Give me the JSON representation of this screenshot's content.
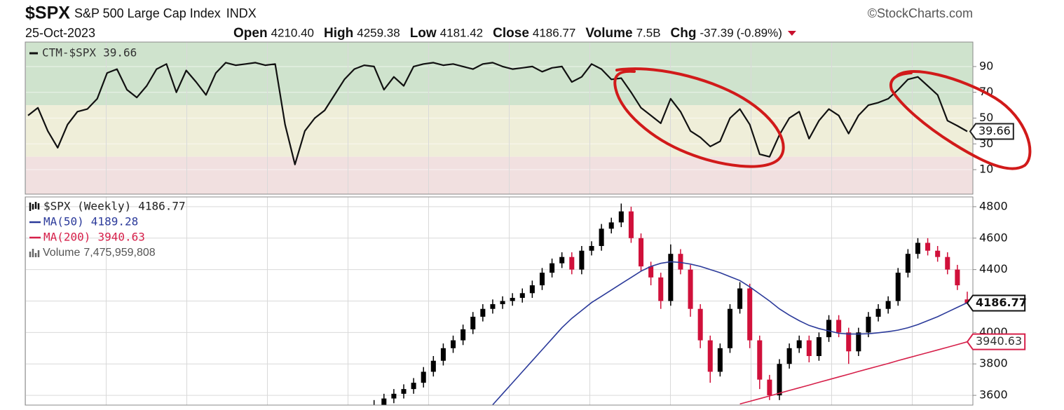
{
  "header": {
    "symbol": "$SPX",
    "name": "S&P 500 Large Cap Index",
    "exchange": "INDX",
    "credit": "©StockCharts.com",
    "date": "25-Oct-2023",
    "quote": [
      {
        "label": "Open",
        "value": {
          "value": 4210.4,
          "label": "4210.40"
        }
      },
      {
        "label": "High",
        "value": 4259.38
      },
      {
        "label": "Low",
        "value": 4181.42
      },
      {
        "label": "Close",
        "value": 4186.77
      },
      {
        "label": "Volume",
        "value": {
          "value": 7500000000,
          "label": "7.5B"
        }
      },
      {
        "label": "Chg",
        "value": -37.39,
        "percent": {
          "value": -0.89,
          "label": "(-0.89%)"
        }
      }
    ]
  },
  "chart_data": [
    {
      "type": "line",
      "series": [
        {
          "name": "CTM-$SPX",
          "color": "#111111",
          "values": [
            52,
            58,
            40,
            27,
            45,
            55,
            57,
            65,
            85,
            88,
            72,
            66,
            75,
            88,
            92,
            70,
            87,
            78,
            68,
            85,
            93,
            91,
            92,
            93,
            91,
            92,
            45,
            14,
            40,
            50,
            56,
            68,
            80,
            88,
            91,
            90,
            72,
            82,
            75,
            90,
            92,
            93,
            91,
            92,
            90,
            88,
            92,
            93,
            90,
            88,
            89,
            90,
            86,
            89,
            90,
            78,
            82,
            92,
            88,
            80,
            81,
            70,
            58,
            52,
            46,
            65,
            55,
            40,
            35,
            28,
            32,
            50,
            57,
            45,
            22,
            20,
            37,
            50,
            55,
            34,
            48,
            57,
            52,
            38,
            52,
            60,
            62,
            65,
            72,
            80,
            82,
            75,
            68,
            48,
            44,
            39.66
          ]
        }
      ],
      "ylim": [
        -9,
        109
      ],
      "yticks": [
        10,
        30,
        50,
        70,
        90
      ],
      "bands": [
        {
          "from": 60,
          "to": 109,
          "color": "#cfe3cd"
        },
        {
          "from": 20,
          "to": 60,
          "color": "#efeed9"
        },
        {
          "from": -9,
          "to": 20,
          "color": "#f1e0e0"
        }
      ],
      "grid": true
    },
    {
      "type": "candlestick",
      "series": [
        {
          "name": "$SPX (Weekly)",
          "up_color": "#000000",
          "down_color": "#d0103a",
          "open": [
            null,
            null,
            null,
            null,
            null,
            null,
            null,
            null,
            null,
            null,
            null,
            null,
            null,
            null,
            null,
            null,
            null,
            null,
            null,
            null,
            null,
            null,
            null,
            null,
            null,
            null,
            null,
            null,
            null,
            null,
            null,
            null,
            null,
            null,
            null,
            3500,
            3540,
            3580,
            3610,
            3640,
            3680,
            3750,
            3820,
            3900,
            3950,
            4020,
            4100,
            4150,
            4180,
            4200,
            4220,
            4250,
            4300,
            4380,
            4440,
            4480,
            4400,
            4520,
            4550,
            4660,
            4700,
            4770,
            4600,
            4420,
            4350,
            4200,
            4500,
            4400,
            4150,
            3950,
            3750,
            3900,
            4150,
            4280,
            3950,
            3700,
            3600,
            3800,
            3900,
            3950,
            3850,
            3970,
            4080,
            4000,
            3880,
            4000,
            4100,
            4150,
            4200,
            4380,
            4500,
            4570,
            4520,
            4480,
            4400,
            4210.4
          ],
          "high": [
            null,
            null,
            null,
            null,
            null,
            null,
            null,
            null,
            null,
            null,
            null,
            null,
            null,
            null,
            null,
            null,
            null,
            null,
            null,
            null,
            null,
            null,
            null,
            null,
            null,
            null,
            null,
            null,
            null,
            null,
            null,
            null,
            null,
            null,
            null,
            3570,
            3610,
            3640,
            3670,
            3710,
            3780,
            3850,
            3930,
            3980,
            4050,
            4130,
            4180,
            4210,
            4230,
            4250,
            4280,
            4330,
            4410,
            4470,
            4510,
            4510,
            4550,
            4580,
            4690,
            4730,
            4820,
            4800,
            4630,
            4450,
            4380,
            4560,
            4530,
            4430,
            4180,
            3980,
            3930,
            4180,
            4320,
            4310,
            3980,
            3730,
            3830,
            3930,
            3980,
            3980,
            4000,
            4110,
            4110,
            4030,
            4030,
            4130,
            4180,
            4230,
            4410,
            4530,
            4600,
            4600,
            4550,
            4510,
            4430,
            4259.38
          ],
          "low": [
            null,
            null,
            null,
            null,
            null,
            null,
            null,
            null,
            null,
            null,
            null,
            null,
            null,
            null,
            null,
            null,
            null,
            null,
            null,
            null,
            null,
            null,
            null,
            null,
            null,
            null,
            null,
            null,
            null,
            null,
            null,
            null,
            null,
            null,
            null,
            3470,
            3510,
            3550,
            3580,
            3610,
            3650,
            3720,
            3790,
            3870,
            3920,
            3990,
            4070,
            4120,
            4150,
            4170,
            4190,
            4220,
            4270,
            4350,
            4410,
            4370,
            4370,
            4490,
            4520,
            4630,
            4670,
            4570,
            4390,
            4300,
            4150,
            4170,
            4370,
            4100,
            3900,
            3680,
            3720,
            3870,
            4120,
            3900,
            3640,
            3570,
            3570,
            3770,
            3870,
            3810,
            3820,
            3940,
            3970,
            3800,
            3850,
            3970,
            4070,
            4120,
            4170,
            4350,
            4470,
            4490,
            4450,
            4370,
            4270,
            4181.42
          ],
          "close": [
            null,
            null,
            null,
            null,
            null,
            null,
            null,
            null,
            null,
            null,
            null,
            null,
            null,
            null,
            null,
            null,
            null,
            null,
            null,
            null,
            null,
            null,
            null,
            null,
            null,
            null,
            null,
            null,
            null,
            null,
            null,
            null,
            null,
            null,
            null,
            3540,
            3580,
            3610,
            3640,
            3680,
            3750,
            3820,
            3900,
            3950,
            4020,
            4100,
            4150,
            4180,
            4200,
            4220,
            4250,
            4300,
            4380,
            4440,
            4480,
            4400,
            4520,
            4550,
            4660,
            4700,
            4770,
            4600,
            4420,
            4350,
            4200,
            4500,
            4400,
            4150,
            3950,
            3750,
            3900,
            4150,
            4280,
            3950,
            3700,
            3600,
            3800,
            3900,
            3950,
            3850,
            3970,
            4080,
            4000,
            3880,
            4000,
            4100,
            4150,
            4200,
            4380,
            4500,
            4570,
            4520,
            4480,
            4400,
            4300,
            4186.77
          ]
        }
      ],
      "overlays": [
        {
          "name": "MA(50)",
          "color": "#2b3a9a",
          "value_box": false,
          "values": [
            null,
            null,
            null,
            null,
            null,
            null,
            null,
            null,
            null,
            null,
            null,
            null,
            null,
            null,
            null,
            null,
            null,
            null,
            null,
            null,
            null,
            null,
            null,
            null,
            null,
            null,
            null,
            null,
            null,
            null,
            null,
            null,
            null,
            null,
            null,
            null,
            null,
            null,
            null,
            null,
            null,
            null,
            null,
            null,
            null,
            null,
            null,
            3540,
            3610,
            3680,
            3750,
            3820,
            3890,
            3960,
            4030,
            4090,
            4140,
            4190,
            4230,
            4270,
            4310,
            4350,
            4390,
            4420,
            4440,
            4450,
            4445,
            4435,
            4420,
            4400,
            4380,
            4355,
            4330,
            4290,
            4245,
            4200,
            4150,
            4110,
            4075,
            4045,
            4025,
            4010,
            3995,
            3990,
            3990,
            3992,
            3998,
            4005,
            4015,
            4030,
            4050,
            4075,
            4100,
            4130,
            4160,
            4189.28
          ]
        },
        {
          "name": "MA(200)",
          "color": "#d6204a",
          "value_box": true,
          "values": [
            null,
            null,
            null,
            null,
            null,
            null,
            null,
            null,
            null,
            null,
            null,
            null,
            null,
            null,
            null,
            null,
            null,
            null,
            null,
            null,
            null,
            null,
            null,
            null,
            null,
            null,
            null,
            null,
            null,
            null,
            null,
            null,
            null,
            null,
            null,
            null,
            null,
            null,
            null,
            null,
            null,
            null,
            null,
            null,
            null,
            null,
            null,
            null,
            null,
            null,
            null,
            null,
            null,
            null,
            null,
            null,
            null,
            null,
            null,
            null,
            null,
            null,
            null,
            null,
            null,
            null,
            null,
            null,
            null,
            null,
            null,
            null,
            3545,
            3562,
            3579,
            3596,
            3614,
            3631,
            3648,
            3665,
            3683,
            3700,
            3717,
            3734,
            3752,
            3769,
            3786,
            3803,
            3821,
            3838,
            3855,
            3872,
            3889,
            3906,
            3923,
            3940.63
          ]
        }
      ],
      "volume": {
        "name": "Volume",
        "value": 7475959808,
        "label": "7,475,959,808"
      },
      "ylim": [
        3538,
        4862
      ],
      "yticks": [
        3600,
        3800,
        4000,
        4200,
        4400,
        4600,
        4800
      ],
      "grid": true
    }
  ]
}
